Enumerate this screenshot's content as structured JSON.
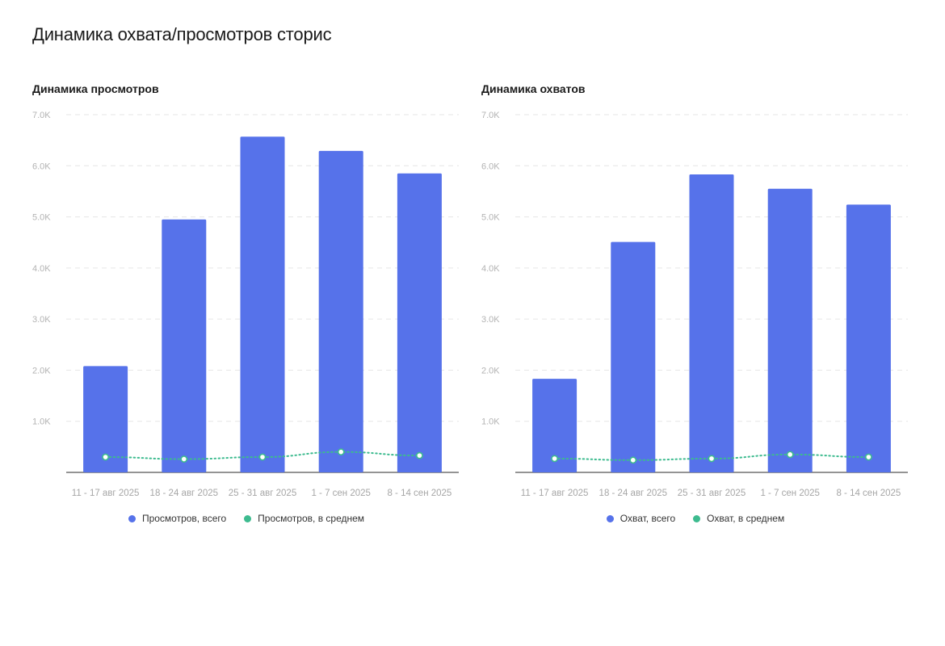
{
  "page": {
    "title": "Динамика охвата/просмотров сторис"
  },
  "colors": {
    "bar": "#5672ea",
    "avg": "#3dbb8f",
    "grid": "#e6e6e6",
    "axis": "#555555"
  },
  "chart_data": [
    {
      "type": "bar",
      "title": "Динамика просмотров",
      "categories": [
        "11 - 17 авг 2025",
        "18 - 24 авг 2025",
        "25 - 31 авг 2025",
        "1 - 7 сен 2025",
        "8 - 14 сен 2025"
      ],
      "yticks": [
        "1.0K",
        "2.0K",
        "3.0K",
        "4.0K",
        "5.0K",
        "6.0K",
        "7.0K"
      ],
      "ylim": [
        0,
        7000
      ],
      "grid": true,
      "legend_position": "bottom",
      "series": [
        {
          "name": "Просмотров, всего",
          "kind": "bar",
          "values": [
            2080,
            4950,
            6570,
            6290,
            5850
          ]
        },
        {
          "name": "Просмотров, в среднем",
          "kind": "line-dotted",
          "values": [
            300,
            260,
            300,
            400,
            330
          ]
        }
      ]
    },
    {
      "type": "bar",
      "title": "Динамика охватов",
      "categories": [
        "11 - 17 авг 2025",
        "18 - 24 авг 2025",
        "25 - 31 авг 2025",
        "1 - 7 сен 2025",
        "8 - 14 сен 2025"
      ],
      "yticks": [
        "1.0K",
        "2.0K",
        "3.0K",
        "4.0K",
        "5.0K",
        "6.0K",
        "7.0K"
      ],
      "ylim": [
        0,
        7000
      ],
      "grid": true,
      "legend_position": "bottom",
      "series": [
        {
          "name": "Охват, всего",
          "kind": "bar",
          "values": [
            1830,
            4510,
            5830,
            5550,
            5240
          ]
        },
        {
          "name": "Охват, в среднем",
          "kind": "line-dotted",
          "values": [
            270,
            240,
            270,
            350,
            300
          ]
        }
      ]
    }
  ]
}
